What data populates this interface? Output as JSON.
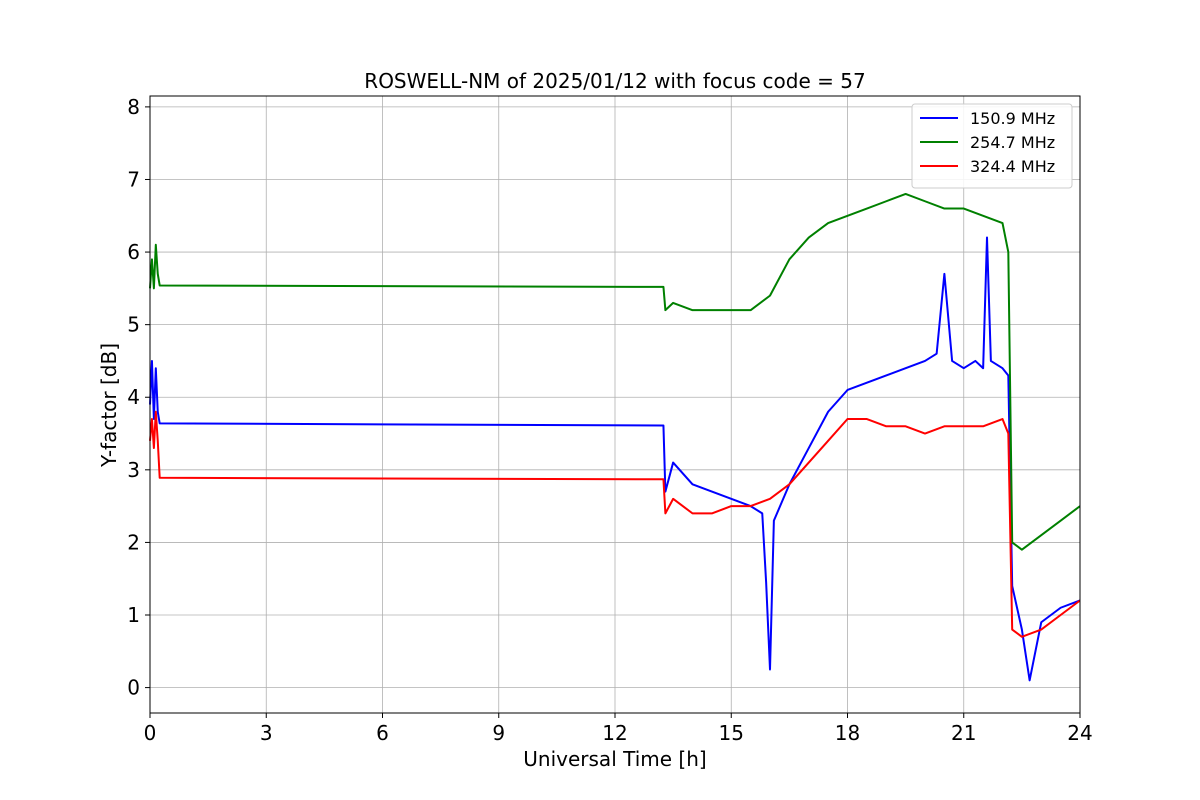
{
  "chart_data": {
    "type": "line",
    "title": "ROSWELL-NM of 2025/01/12 with focus code = 57",
    "xlabel": "Universal Time [h]",
    "ylabel": "Y-factor [dB]",
    "xlim": [
      0,
      24
    ],
    "ylim": [
      -0.35,
      8.15
    ],
    "xticks": [
      0,
      3,
      6,
      9,
      12,
      15,
      18,
      21,
      24
    ],
    "yticks": [
      0,
      1,
      2,
      3,
      4,
      5,
      6,
      7,
      8
    ],
    "grid": true,
    "legend_position": "top-right",
    "series": [
      {
        "name": " 150.9 MHz",
        "color": "#0000ff",
        "points": [
          [
            0.0,
            3.9
          ],
          [
            0.05,
            4.5
          ],
          [
            0.1,
            3.7
          ],
          [
            0.15,
            4.4
          ],
          [
            0.2,
            3.8
          ],
          [
            0.25,
            3.64
          ],
          [
            13.25,
            3.61
          ],
          [
            13.3,
            2.7
          ],
          [
            13.5,
            3.1
          ],
          [
            14.0,
            2.8
          ],
          [
            14.5,
            2.7
          ],
          [
            15.0,
            2.6
          ],
          [
            15.5,
            2.5
          ],
          [
            15.8,
            2.4
          ],
          [
            15.9,
            1.45
          ],
          [
            16.0,
            0.25
          ],
          [
            16.1,
            2.3
          ],
          [
            16.5,
            2.8
          ],
          [
            17.0,
            3.3
          ],
          [
            17.5,
            3.8
          ],
          [
            18.0,
            4.1
          ],
          [
            18.5,
            4.2
          ],
          [
            19.0,
            4.3
          ],
          [
            19.5,
            4.4
          ],
          [
            20.0,
            4.5
          ],
          [
            20.3,
            4.6
          ],
          [
            20.5,
            5.7
          ],
          [
            20.7,
            4.5
          ],
          [
            21.0,
            4.4
          ],
          [
            21.3,
            4.5
          ],
          [
            21.5,
            4.4
          ],
          [
            21.6,
            6.2
          ],
          [
            21.7,
            4.5
          ],
          [
            22.0,
            4.4
          ],
          [
            22.15,
            4.3
          ],
          [
            22.25,
            1.4
          ],
          [
            22.5,
            0.8
          ],
          [
            22.7,
            0.1
          ],
          [
            23.0,
            0.9
          ],
          [
            23.5,
            1.1
          ],
          [
            24.0,
            1.2
          ]
        ]
      },
      {
        "name": "254.7 MHz",
        "color": "#008000",
        "points": [
          [
            0.0,
            5.5
          ],
          [
            0.05,
            5.9
          ],
          [
            0.1,
            5.5
          ],
          [
            0.15,
            6.1
          ],
          [
            0.2,
            5.7
          ],
          [
            0.25,
            5.54
          ],
          [
            13.25,
            5.52
          ],
          [
            13.3,
            5.2
          ],
          [
            13.5,
            5.3
          ],
          [
            14.0,
            5.2
          ],
          [
            14.5,
            5.2
          ],
          [
            15.0,
            5.2
          ],
          [
            15.5,
            5.2
          ],
          [
            16.0,
            5.4
          ],
          [
            16.5,
            5.9
          ],
          [
            17.0,
            6.2
          ],
          [
            17.5,
            6.4
          ],
          [
            18.0,
            6.5
          ],
          [
            18.5,
            6.6
          ],
          [
            19.0,
            6.7
          ],
          [
            19.5,
            6.8
          ],
          [
            20.0,
            6.7
          ],
          [
            20.5,
            6.6
          ],
          [
            21.0,
            6.6
          ],
          [
            21.5,
            6.5
          ],
          [
            22.0,
            6.4
          ],
          [
            22.15,
            6.0
          ],
          [
            22.25,
            2.0
          ],
          [
            22.5,
            1.9
          ],
          [
            23.0,
            2.1
          ],
          [
            23.5,
            2.3
          ],
          [
            24.0,
            2.5
          ]
        ]
      },
      {
        "name": "324.4 MHz",
        "color": "#ff0000",
        "points": [
          [
            0.0,
            3.4
          ],
          [
            0.05,
            3.7
          ],
          [
            0.1,
            3.3
          ],
          [
            0.15,
            3.8
          ],
          [
            0.2,
            3.4
          ],
          [
            0.25,
            2.89
          ],
          [
            13.25,
            2.87
          ],
          [
            13.3,
            2.4
          ],
          [
            13.5,
            2.6
          ],
          [
            14.0,
            2.4
          ],
          [
            14.5,
            2.4
          ],
          [
            15.0,
            2.5
          ],
          [
            15.5,
            2.5
          ],
          [
            16.0,
            2.6
          ],
          [
            16.5,
            2.8
          ],
          [
            17.0,
            3.1
          ],
          [
            17.5,
            3.4
          ],
          [
            18.0,
            3.7
          ],
          [
            18.5,
            3.7
          ],
          [
            19.0,
            3.6
          ],
          [
            19.5,
            3.6
          ],
          [
            20.0,
            3.5
          ],
          [
            20.5,
            3.6
          ],
          [
            21.0,
            3.6
          ],
          [
            21.5,
            3.6
          ],
          [
            22.0,
            3.7
          ],
          [
            22.15,
            3.5
          ],
          [
            22.25,
            0.8
          ],
          [
            22.5,
            0.7
          ],
          [
            23.0,
            0.8
          ],
          [
            23.5,
            1.0
          ],
          [
            24.0,
            1.2
          ]
        ]
      }
    ]
  }
}
